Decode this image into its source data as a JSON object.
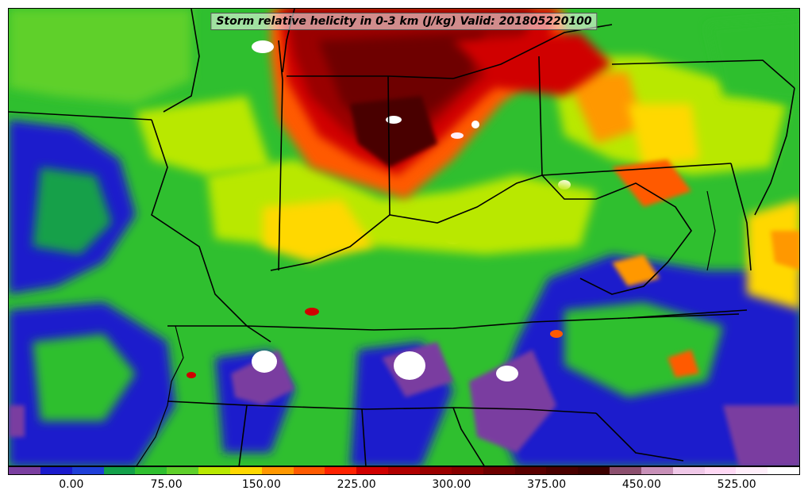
{
  "title": "Storm relative helicity in 0-3 km (J/kg) Valid: 201805220100",
  "colorbar": {
    "colors": [
      "#7a3ea0",
      "#1a1acc",
      "#1f3fd8",
      "#13a04a",
      "#2fbf2f",
      "#5fd02a",
      "#b9e800",
      "#ffd800",
      "#ff9800",
      "#ff5a00",
      "#ff2200",
      "#d00000",
      "#b00000",
      "#9a0000",
      "#880000",
      "#6e0000",
      "#5a0000",
      "#4a0000",
      "#3c0000",
      "#8c4f6e",
      "#c890b8",
      "#f0c8e8",
      "#ffd8f4",
      "#ffeefa",
      "#ffffff"
    ],
    "tick_labels": [
      {
        "text": "0.00",
        "value": 0
      },
      {
        "text": "75.00",
        "value": 75
      },
      {
        "text": "150.00",
        "value": 150
      },
      {
        "text": "225.00",
        "value": 225
      },
      {
        "text": "300.00",
        "value": 300
      },
      {
        "text": "375.00",
        "value": 375
      },
      {
        "text": "450.00",
        "value": 450
      },
      {
        "text": "525.00",
        "value": 525
      }
    ],
    "min": -50,
    "max": 575
  }
}
